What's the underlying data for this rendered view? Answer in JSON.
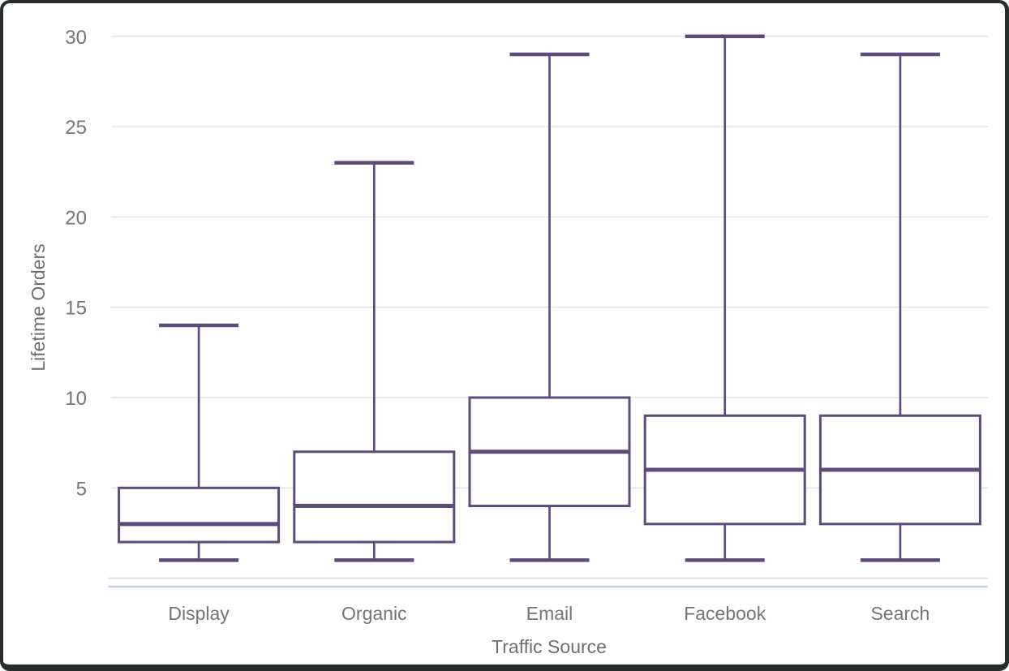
{
  "chart_data": {
    "type": "boxplot",
    "xlabel": "Traffic Source",
    "ylabel": "Lifetime Orders",
    "categories": [
      "Display",
      "Organic",
      "Email",
      "Facebook",
      "Search"
    ],
    "series": [
      {
        "name": "Display",
        "min": 1,
        "q1": 2,
        "median": 3,
        "q3": 5,
        "max": 14
      },
      {
        "name": "Organic",
        "min": 1,
        "q1": 2,
        "median": 4,
        "q3": 7,
        "max": 23
      },
      {
        "name": "Email",
        "min": 1,
        "q1": 4,
        "median": 7,
        "q3": 10,
        "max": 29
      },
      {
        "name": "Facebook",
        "min": 1,
        "q1": 3,
        "median": 6,
        "q3": 9,
        "max": 30
      },
      {
        "name": "Search",
        "min": 1,
        "q1": 3,
        "median": 6,
        "q3": 9,
        "max": 29
      }
    ],
    "y_ticks": [
      5,
      10,
      15,
      20,
      25,
      30
    ],
    "ylim": [
      0,
      30
    ],
    "grid": true,
    "legend": "none",
    "colors": {
      "box_stroke": "#5d4b7d",
      "box_fill": "#ffffff",
      "gridline": "#e8e8e8",
      "zero_gridline": "#e3e3e3",
      "axis_baseline": "#c8d2e4",
      "tick_label": "#757575",
      "axis_title": "#6e6e6e",
      "frame_border": "#272c2c",
      "background": "#ffffff"
    }
  }
}
